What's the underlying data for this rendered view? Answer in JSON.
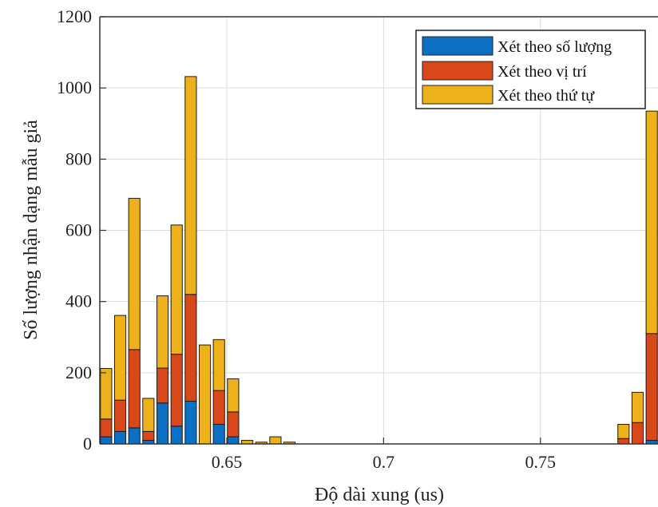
{
  "chart_data": {
    "type": "bar",
    "stacked": true,
    "title": "",
    "xlabel": "Độ dài xung (us)",
    "ylabel": "Số lượng nhận dạng mẫu giả",
    "xlim": [
      0.6095,
      0.7875
    ],
    "ylim": [
      0,
      1200
    ],
    "xticks": [
      0.65,
      0.7,
      0.75
    ],
    "xtick_labels": [
      "0.65",
      "0.7",
      "0.75"
    ],
    "yticks": [
      0,
      200,
      400,
      600,
      800,
      1000,
      1200
    ],
    "grid": true,
    "legend_position": "top-right",
    "bar_width": 0.0036,
    "x": [
      0.6115,
      0.616,
      0.6205,
      0.625,
      0.6295,
      0.634,
      0.6385,
      0.643,
      0.6475,
      0.652,
      0.6565,
      0.661,
      0.6655,
      0.67,
      0.7765,
      0.781,
      0.7855
    ],
    "series": [
      {
        "name": "Xét theo số lượng",
        "color": "#0b6fc4",
        "values": [
          20,
          35,
          45,
          10,
          115,
          50,
          120,
          0,
          55,
          20,
          0,
          0,
          0,
          0,
          0,
          0,
          10
        ]
      },
      {
        "name": "Xét theo vị trí",
        "color": "#d9481a",
        "values": [
          50,
          88,
          220,
          25,
          98,
          202,
          300,
          0,
          95,
          70,
          0,
          0,
          0,
          0,
          15,
          60,
          300
        ]
      },
      {
        "name": "Xét theo thứ tự",
        "color": "#edb11c",
        "values": [
          142,
          238,
          425,
          93,
          203,
          363,
          612,
          278,
          143,
          93,
          10,
          5,
          20,
          5,
          40,
          85,
          625
        ]
      }
    ]
  }
}
